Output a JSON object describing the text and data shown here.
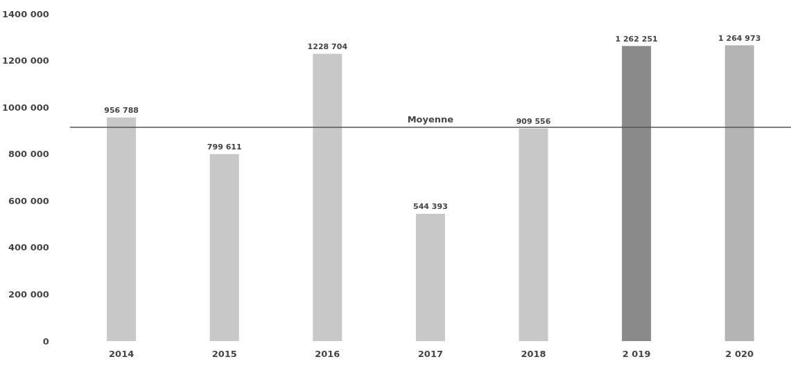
{
  "chart_data": {
    "type": "bar",
    "categories": [
      "2014",
      "2015",
      "2016",
      "2017",
      "2018",
      "2 019",
      "2 020"
    ],
    "values": [
      956788,
      799611,
      1228704,
      544393,
      909556,
      1262251,
      1264973
    ],
    "colors": [
      "#c8c8c8",
      "#c8c8c8",
      "#c8c8c8",
      "#c8c8c8",
      "#c8c8c8",
      "#8a8a8a",
      "#b4b4b4"
    ],
    "value_labels": [
      "956 788",
      "799 611",
      "1228 704",
      "544 393",
      "909 556",
      "1 262 251",
      "1 264 973"
    ],
    "ylim": [
      0,
      1400000
    ],
    "yticks": [
      {
        "value": 0,
        "label": "0"
      },
      {
        "value": 200000,
        "label": "200 000"
      },
      {
        "value": 400000,
        "label": "400 000"
      },
      {
        "value": 600000,
        "label": "600 000"
      },
      {
        "value": 800000,
        "label": "800 000"
      },
      {
        "value": 1000000,
        "label": "1000 000"
      },
      {
        "value": 1200000,
        "label": "1200 000"
      },
      {
        "value": 1400000,
        "label": "1400 000"
      }
    ],
    "ref_lines": [
      {
        "axis": "y",
        "value": 915000,
        "label": "Moyenne",
        "color": "#555555"
      }
    ],
    "grid": false
  }
}
